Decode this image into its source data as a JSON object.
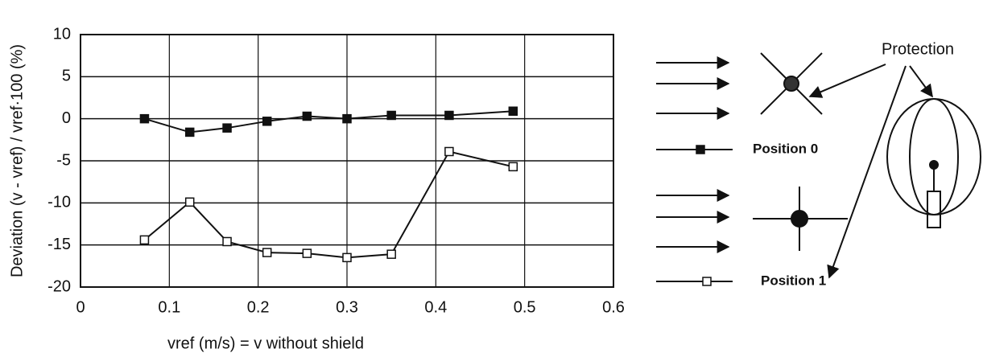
{
  "chart_data": {
    "type": "line",
    "ylabel": "Deviation (v - vref) / vref·100 (%)",
    "xlabel": "vref (m/s) = v without shield",
    "annotation": "Protection",
    "xlim": [
      0,
      0.6
    ],
    "xticks": [
      0,
      0.1,
      0.2,
      0.3,
      0.4,
      0.5,
      0.6
    ],
    "ylim": [
      -20,
      10
    ],
    "yticks": [
      -20,
      -15,
      -10,
      -5,
      0,
      5,
      10
    ],
    "grid": true,
    "series": [
      {
        "name": "Position 0",
        "color": "#111111",
        "marker": "filled-square",
        "x": [
          0.072,
          0.123,
          0.165,
          0.21,
          0.255,
          0.3,
          0.35,
          0.415,
          0.487
        ],
        "values": [
          0,
          -1.6,
          -1.1,
          -0.3,
          0.3,
          0,
          0.4,
          0.4,
          0.9
        ]
      },
      {
        "name": "Position 1",
        "color": "#111111",
        "marker": "open-square",
        "x": [
          0.072,
          0.123,
          0.165,
          0.21,
          0.255,
          0.3,
          0.35,
          0.415,
          0.487
        ],
        "values": [
          -14.4,
          -9.9,
          -14.6,
          -15.9,
          -16,
          -16.5,
          -16.1,
          -3.9,
          -5.7
        ]
      }
    ]
  }
}
